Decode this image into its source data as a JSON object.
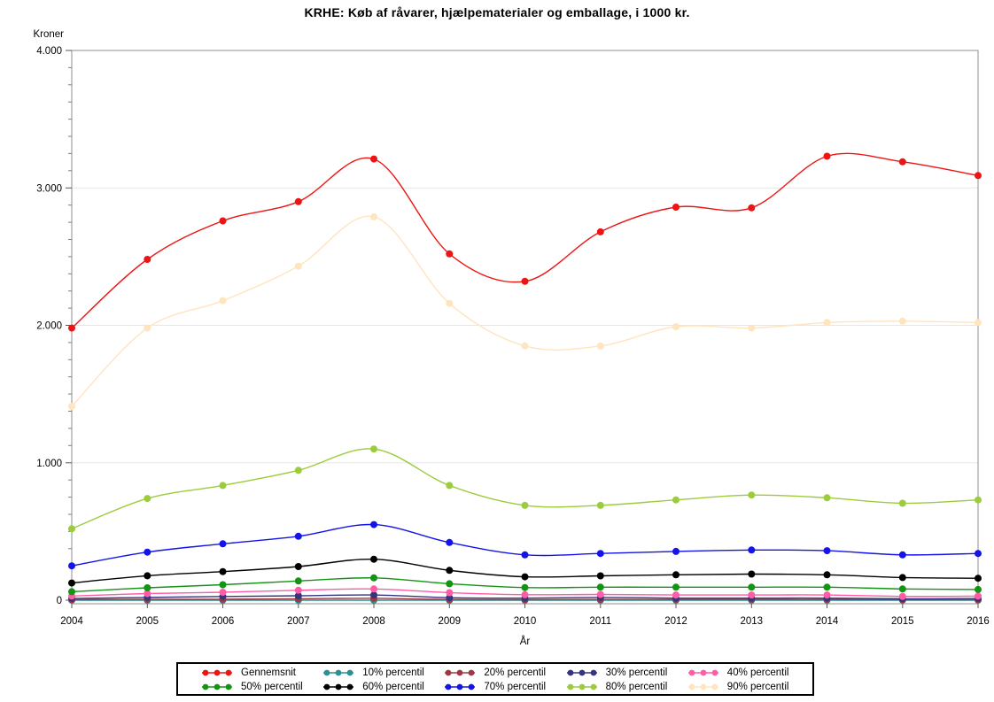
{
  "chart_data": {
    "type": "line",
    "title": "KRHE: Køb af råvarer, hjælpematerialer og emballage, i 1000 kr.",
    "xlabel": "År",
    "ylabel": "Kroner",
    "grid": "horizontal-major-only",
    "legend_position": "bottom",
    "ylim": [
      0,
      4000
    ],
    "ytick_values": [
      0,
      1000,
      2000,
      3000,
      4000
    ],
    "ytick_labels": [
      "0",
      "1.000",
      "2.000",
      "3.000",
      "4.000"
    ],
    "minor_tick_step": 125,
    "x": [
      2004,
      2005,
      2006,
      2007,
      2008,
      2009,
      2010,
      2011,
      2012,
      2013,
      2014,
      2015,
      2016
    ],
    "xtick_labels": [
      "2004",
      "2005",
      "2006",
      "2007",
      "2008",
      "2009",
      "2010",
      "2011",
      "2012",
      "2013",
      "2014",
      "2015",
      "2016"
    ],
    "series": [
      {
        "name": "Gennemsnit",
        "color": "#ED1414",
        "values": [
          1980,
          2480,
          2760,
          2900,
          3210,
          2520,
          2320,
          2680,
          2860,
          2855,
          3230,
          3190,
          3090
        ]
      },
      {
        "name": "10% percentil",
        "color": "#2C9090",
        "values": [
          0,
          0,
          0,
          0,
          0,
          0,
          0,
          0,
          0,
          0,
          0,
          0,
          0
        ]
      },
      {
        "name": "20% percentil",
        "color": "#9E3943",
        "values": [
          4,
          6,
          7,
          10,
          14,
          5,
          4,
          5,
          5,
          6,
          5,
          4,
          4
        ]
      },
      {
        "name": "30% percentil",
        "color": "#35357F",
        "values": [
          12,
          20,
          27,
          32,
          38,
          18,
          15,
          20,
          15,
          15,
          15,
          10,
          12
        ]
      },
      {
        "name": "40% percentil",
        "color": "#FF5CA6",
        "values": [
          30,
          48,
          58,
          72,
          82,
          55,
          40,
          42,
          38,
          38,
          38,
          28,
          30
        ]
      },
      {
        "name": "50% percentil",
        "color": "#149414",
        "values": [
          62,
          90,
          113,
          140,
          162,
          120,
          92,
          95,
          95,
          95,
          95,
          82,
          78
        ]
      },
      {
        "name": "60% percentil",
        "color": "#000000",
        "values": [
          125,
          178,
          208,
          245,
          298,
          217,
          170,
          177,
          185,
          190,
          185,
          165,
          160
        ]
      },
      {
        "name": "70% percentil",
        "color": "#1414E8",
        "values": [
          250,
          350,
          410,
          465,
          550,
          420,
          330,
          340,
          355,
          365,
          360,
          330,
          340
        ]
      },
      {
        "name": "80% percentil",
        "color": "#9CCC3C",
        "values": [
          520,
          740,
          835,
          945,
          1100,
          835,
          690,
          690,
          730,
          765,
          745,
          705,
          730
        ]
      },
      {
        "name": "90% percentil",
        "color": "#FFE4BE",
        "values": [
          1410,
          1980,
          2180,
          2430,
          2790,
          2160,
          1850,
          1850,
          1990,
          1980,
          2020,
          2030,
          2020
        ]
      }
    ]
  }
}
